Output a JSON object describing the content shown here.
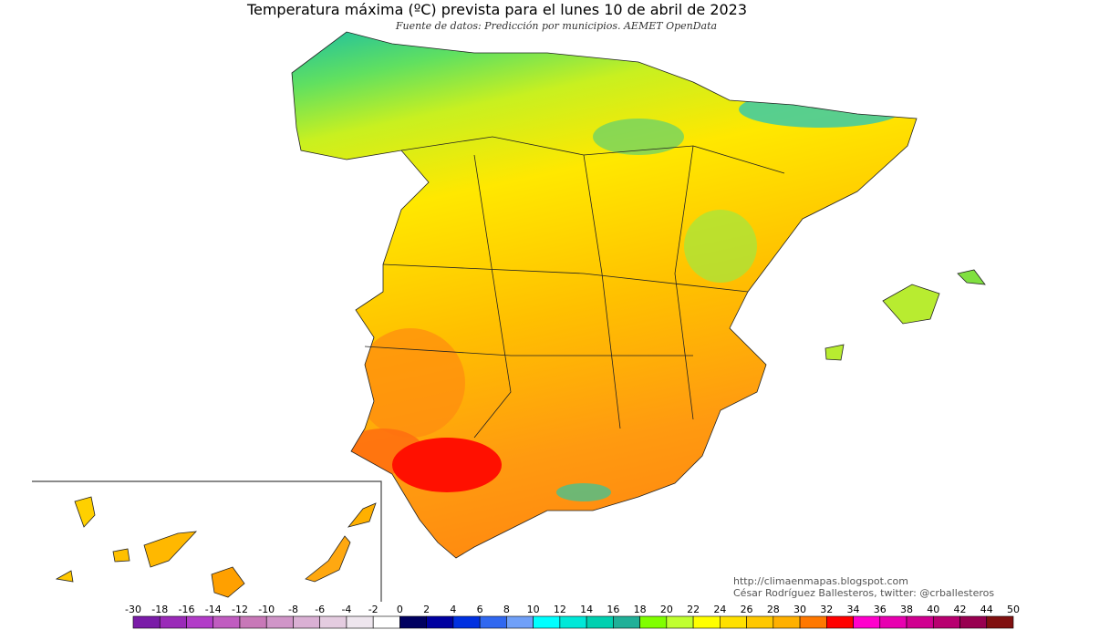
{
  "header": {
    "title": "Temperatura máxima (ºC) prevista para el lunes 10 de abril de 2023",
    "subtitle": "Fuente de datos: Predicción por municipios. AEMET OpenData"
  },
  "credits": {
    "url": "http://climaenmapas.blogspot.com",
    "author": "César Rodríguez Ballesteros, twitter: @crballesteros"
  },
  "legend": {
    "labels": [
      -30,
      -18,
      -16,
      -14,
      -12,
      -10,
      -8,
      -6,
      -4,
      -2,
      0,
      2,
      4,
      6,
      8,
      10,
      12,
      14,
      16,
      18,
      20,
      22,
      24,
      26,
      28,
      30,
      32,
      34,
      36,
      38,
      40,
      42,
      44,
      50
    ],
    "colors": [
      "#7a1ca8",
      "#9a2ab8",
      "#b23cc8",
      "#c05cc0",
      "#c878b8",
      "#d095c8",
      "#dab0d4",
      "#e4cce0",
      "#eee6ee",
      "#ffffff",
      "#000060",
      "#0000a0",
      "#0030e0",
      "#3068f0",
      "#70a0f8",
      "#00ffff",
      "#00e8d8",
      "#00d0b0",
      "#20b098",
      "#80ff00",
      "#c0ff30",
      "#ffff00",
      "#ffe000",
      "#ffc800",
      "#ffb000",
      "#ff7800",
      "#ff0000",
      "#ff00cc",
      "#e800b0",
      "#d00090",
      "#b80070",
      "#980050",
      "#801010"
    ]
  }
}
